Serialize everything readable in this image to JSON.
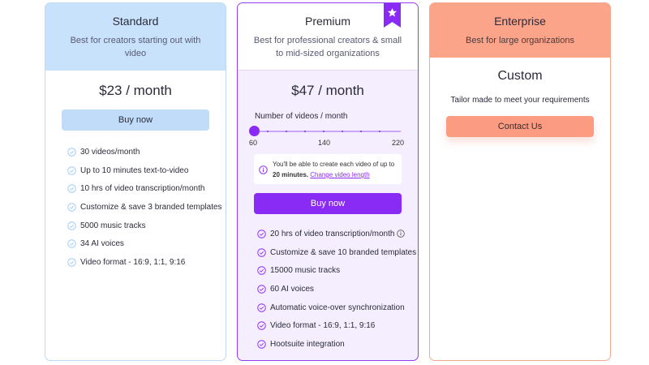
{
  "plans": {
    "standard": {
      "name": "Standard",
      "description": "Best for creators starting out with video",
      "price": "$23 / month",
      "button": "Buy now",
      "features": [
        "30 videos/month",
        "Up to 10 minutes text-to-video",
        "10 hrs of video transcription/month",
        "Customize & save 3 branded templates",
        "5000 music tracks",
        "34 AI voices",
        "Video format - 16:9, 1:1, 9:16"
      ]
    },
    "premium": {
      "name": "Premium",
      "description": "Best for professional creators & small to mid-sized organizations",
      "price": "$47 / month",
      "slider_label": "Number of videos / month",
      "slider": {
        "min": 60,
        "max": 220,
        "value": 60,
        "scale_labels": [
          "60",
          "140",
          "220"
        ]
      },
      "info_prefix": "You'll be able to create each video of up to ",
      "info_bold": "20 minutes.",
      "info_link": "Change video length",
      "button": "Buy now",
      "features": [
        "20 hrs of video transcription/month",
        "Customize & save 10 branded templates",
        "15000 music tracks",
        "60 AI voices",
        "Automatic voice-over synchronization",
        "Video format - 16:9, 1:1, 9:16",
        "Hootsuite integration"
      ]
    },
    "enterprise": {
      "name": "Enterprise",
      "description": "Best for large organizations",
      "price": "Custom",
      "tagline": "Tailor made to meet your requirements",
      "button": "Contact Us"
    }
  },
  "icons": {
    "check": "check-circle-icon",
    "info": "info-circle-icon",
    "badge": "star-ribbon-icon"
  },
  "colors": {
    "standard_accent": "#c9e2fb",
    "premium_accent": "#8a2bf5",
    "enterprise_accent": "#fba48a"
  }
}
